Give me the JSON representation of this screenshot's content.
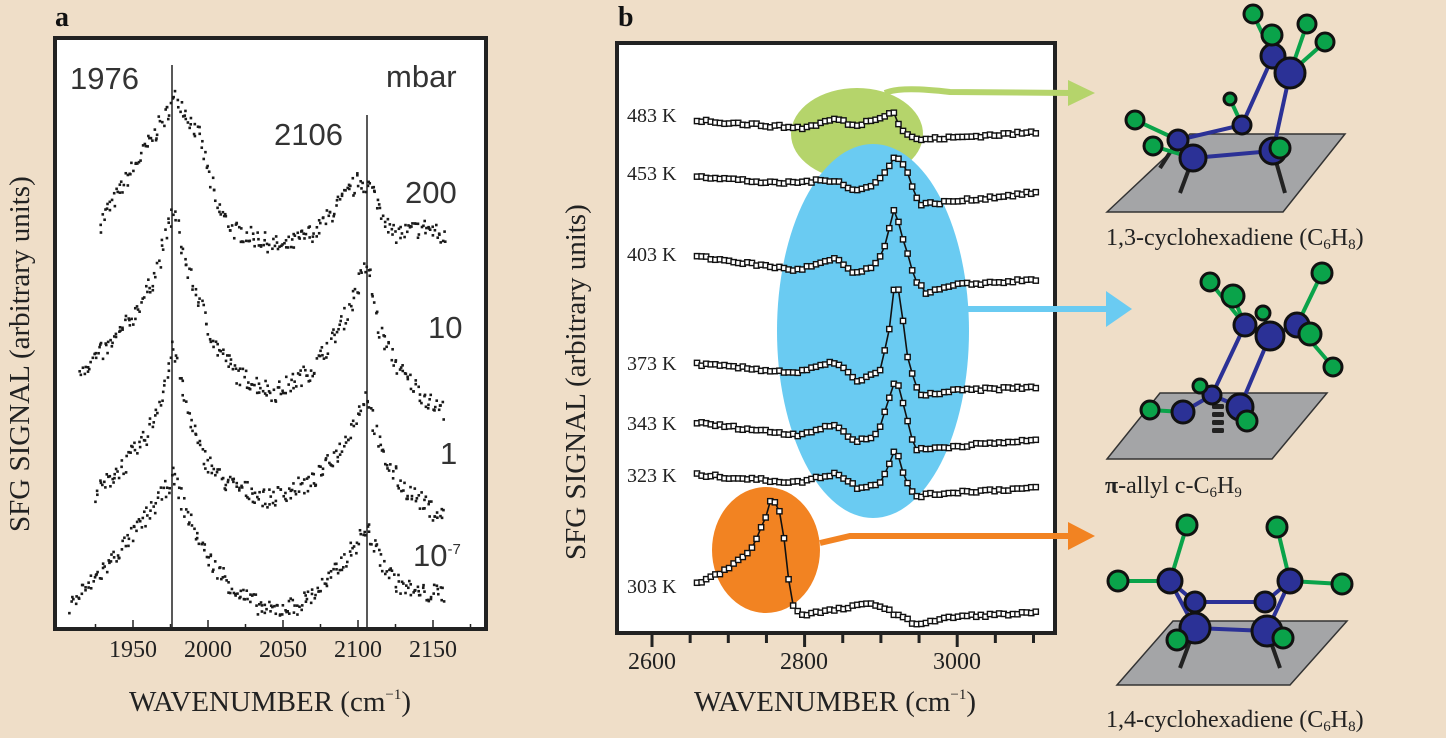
{
  "colors": {
    "background": "#efdec8",
    "green": "#b5d46b",
    "blue": "#6acbf2",
    "orange": "#f28322",
    "carbon": "#2b3196",
    "hydrogen": "#0aa34a",
    "surface": "#a4a5a7"
  },
  "chart_data": [
    {
      "panel_label": "a",
      "type": "scatter",
      "xlabel_parts": [
        "WAVENUMBER (cm",
        "−1",
        ")"
      ],
      "ylabel": "SFG SIGNAL (arbitrary units)",
      "xlim": [
        1898,
        2185
      ],
      "ylim": [
        0,
        100
      ],
      "xticks": [
        1950,
        2000,
        2050,
        2100,
        2150
      ],
      "grid": false,
      "unit_label": "mbar",
      "reference_lines": [
        {
          "x": 1976,
          "label": "1976"
        },
        {
          "x": 2106,
          "label": "2106"
        }
      ],
      "series": [
        {
          "name": "200",
          "points": [
            [
              1928,
              68.8
            ],
            [
              1961,
              82.4
            ],
            [
              1979,
              90.2
            ],
            [
              1995,
              82.9
            ],
            [
              2006,
              71.5
            ],
            [
              2017,
              67.6
            ],
            [
              2050,
              64.6
            ],
            [
              2073,
              67.6
            ],
            [
              2101,
              76.1
            ],
            [
              2108,
              74.9
            ],
            [
              2117,
              70.5
            ],
            [
              2123,
              66.8
            ],
            [
              2146,
              68.1
            ],
            [
              2159,
              65.9
            ]
          ]
        },
        {
          "name": "10",
          "points": [
            [
              1915,
              44
            ],
            [
              1935,
              48
            ],
            [
              1950,
              53
            ],
            [
              1965,
              60
            ],
            [
              1977,
              71
            ],
            [
              1985,
              62
            ],
            [
              1995,
              55
            ],
            [
              2005,
              48
            ],
            [
              2020,
              43
            ],
            [
              2045,
              40
            ],
            [
              2070,
              44
            ],
            [
              2090,
              52
            ],
            [
              2100,
              58
            ],
            [
              2106,
              62
            ],
            [
              2115,
              50
            ],
            [
              2130,
              43
            ],
            [
              2150,
              38
            ],
            [
              2158,
              37
            ]
          ]
        },
        {
          "name": "1",
          "points": [
            [
              1925,
              23
            ],
            [
              1945,
              28
            ],
            [
              1960,
              33
            ],
            [
              1972,
              42
            ],
            [
              1977,
              48
            ],
            [
              1985,
              38
            ],
            [
              1995,
              30
            ],
            [
              2010,
              25
            ],
            [
              2040,
              22
            ],
            [
              2070,
              25
            ],
            [
              2090,
              31
            ],
            [
              2106,
              40
            ],
            [
              2115,
              30
            ],
            [
              2130,
              24
            ],
            [
              2150,
              20
            ],
            [
              2158,
              19
            ]
          ]
        },
        {
          "name": "10",
          "name_sup": "-7",
          "points": [
            [
              1908,
              4
            ],
            [
              1930,
              10
            ],
            [
              1950,
              16
            ],
            [
              1965,
              21
            ],
            [
              1977,
              26
            ],
            [
              1985,
              20
            ],
            [
              2000,
              12
            ],
            [
              2020,
              6
            ],
            [
              2040,
              3
            ],
            [
              2060,
              4
            ],
            [
              2080,
              8
            ],
            [
              2095,
              13
            ],
            [
              2106,
              17
            ],
            [
              2115,
              12
            ],
            [
              2125,
              8
            ],
            [
              2140,
              6
            ],
            [
              2158,
              6
            ]
          ]
        }
      ]
    },
    {
      "panel_label": "b",
      "type": "line",
      "xlabel_parts": [
        "WAVENUMBER (cm",
        "−1",
        ")"
      ],
      "ylabel": "SFG SIGNAL (arbitrary units)",
      "xlim": [
        2554,
        3129
      ],
      "ylim": [
        0,
        100
      ],
      "xticks": [
        2600,
        2800,
        3000
      ],
      "grid": false,
      "series": [
        {
          "name": "483 K",
          "points": [
            [
              2659,
              86.9
            ],
            [
              2760,
              85.9
            ],
            [
              2800,
              85.6
            ],
            [
              2842,
              87.2
            ],
            [
              2865,
              85.9
            ],
            [
              2900,
              87.5
            ],
            [
              2916,
              88.5
            ],
            [
              2925,
              85.6
            ],
            [
              2945,
              83.6
            ],
            [
              3000,
              84.0
            ],
            [
              3105,
              84.9
            ]
          ]
        },
        {
          "name": "453 K",
          "points": [
            [
              2659,
              77.5
            ],
            [
              2760,
              76.2
            ],
            [
              2842,
              76.8
            ],
            [
              2865,
              74.9
            ],
            [
              2890,
              75.8
            ],
            [
              2910,
              79.1
            ],
            [
              2920,
              81.0
            ],
            [
              2935,
              78.1
            ],
            [
              2950,
              72.6
            ],
            [
              3000,
              73.2
            ],
            [
              3105,
              74.7
            ]
          ]
        },
        {
          "name": "403 K",
          "points": [
            [
              2659,
              63.8
            ],
            [
              2790,
              61.5
            ],
            [
              2842,
              63.4
            ],
            [
              2865,
              60.9
            ],
            [
              2890,
              61.9
            ],
            [
              2905,
              65.4
            ],
            [
              2918,
              71.9
            ],
            [
              2925,
              68.7
            ],
            [
              2945,
              59.9
            ],
            [
              2960,
              57.6
            ],
            [
              3000,
              59.0
            ],
            [
              3105,
              59.9
            ]
          ]
        },
        {
          "name": "373 K",
          "points": [
            [
              2659,
              45.6
            ],
            [
              2790,
              44.1
            ],
            [
              2842,
              46.0
            ],
            [
              2870,
              42.4
            ],
            [
              2900,
              44.7
            ],
            [
              2912,
              51.9
            ],
            [
              2918,
              59.7
            ],
            [
              2925,
              57.3
            ],
            [
              2935,
              46.6
            ],
            [
              2950,
              40.2
            ],
            [
              3000,
              41.1
            ],
            [
              3105,
              41.7
            ]
          ]
        },
        {
          "name": "343 K",
          "points": [
            [
              2659,
              35.6
            ],
            [
              2790,
              33.6
            ],
            [
              2842,
              35.3
            ],
            [
              2865,
              32.4
            ],
            [
              2895,
              33.6
            ],
            [
              2912,
              40.2
            ],
            [
              2920,
              43.4
            ],
            [
              2928,
              39.5
            ],
            [
              2945,
              31.0
            ],
            [
              3000,
              31.7
            ],
            [
              3105,
              32.7
            ]
          ]
        },
        {
          "name": "323 K",
          "points": [
            [
              2659,
              26.8
            ],
            [
              2790,
              25.5
            ],
            [
              2842,
              27.1
            ],
            [
              2870,
              24.6
            ],
            [
              2900,
              25.5
            ],
            [
              2912,
              29.2
            ],
            [
              2920,
              31.4
            ],
            [
              2930,
              26.5
            ],
            [
              2945,
              23.2
            ],
            [
              3000,
              23.9
            ],
            [
              3105,
              24.6
            ]
          ]
        },
        {
          "name": "303 K",
          "points": [
            [
              2659,
              8.3
            ],
            [
              2700,
              10.9
            ],
            [
              2730,
              14.1
            ],
            [
              2748,
              19.3
            ],
            [
              2755,
              22.3
            ],
            [
              2765,
              21.9
            ],
            [
              2775,
              14.8
            ],
            [
              2782,
              5.1
            ],
            [
              2795,
              3.1
            ],
            [
              2850,
              4.1
            ],
            [
              2890,
              5.1
            ],
            [
              2945,
              1.5
            ],
            [
              3000,
              2.8
            ],
            [
              3105,
              3.4
            ]
          ]
        }
      ]
    }
  ],
  "molecules": [
    {
      "label_parts": [
        "1,3-cyclohexadiene (C",
        "6",
        "H",
        "8",
        ")"
      ],
      "highlight": "green"
    },
    {
      "label_parts": [
        "π",
        "-allyl c-C",
        "6",
        "H",
        "9"
      ],
      "highlight": "blue"
    },
    {
      "label_parts": [
        "1,4-cyclohexadiene (C",
        "6",
        "H",
        "8",
        ")"
      ],
      "highlight": "orange"
    }
  ]
}
